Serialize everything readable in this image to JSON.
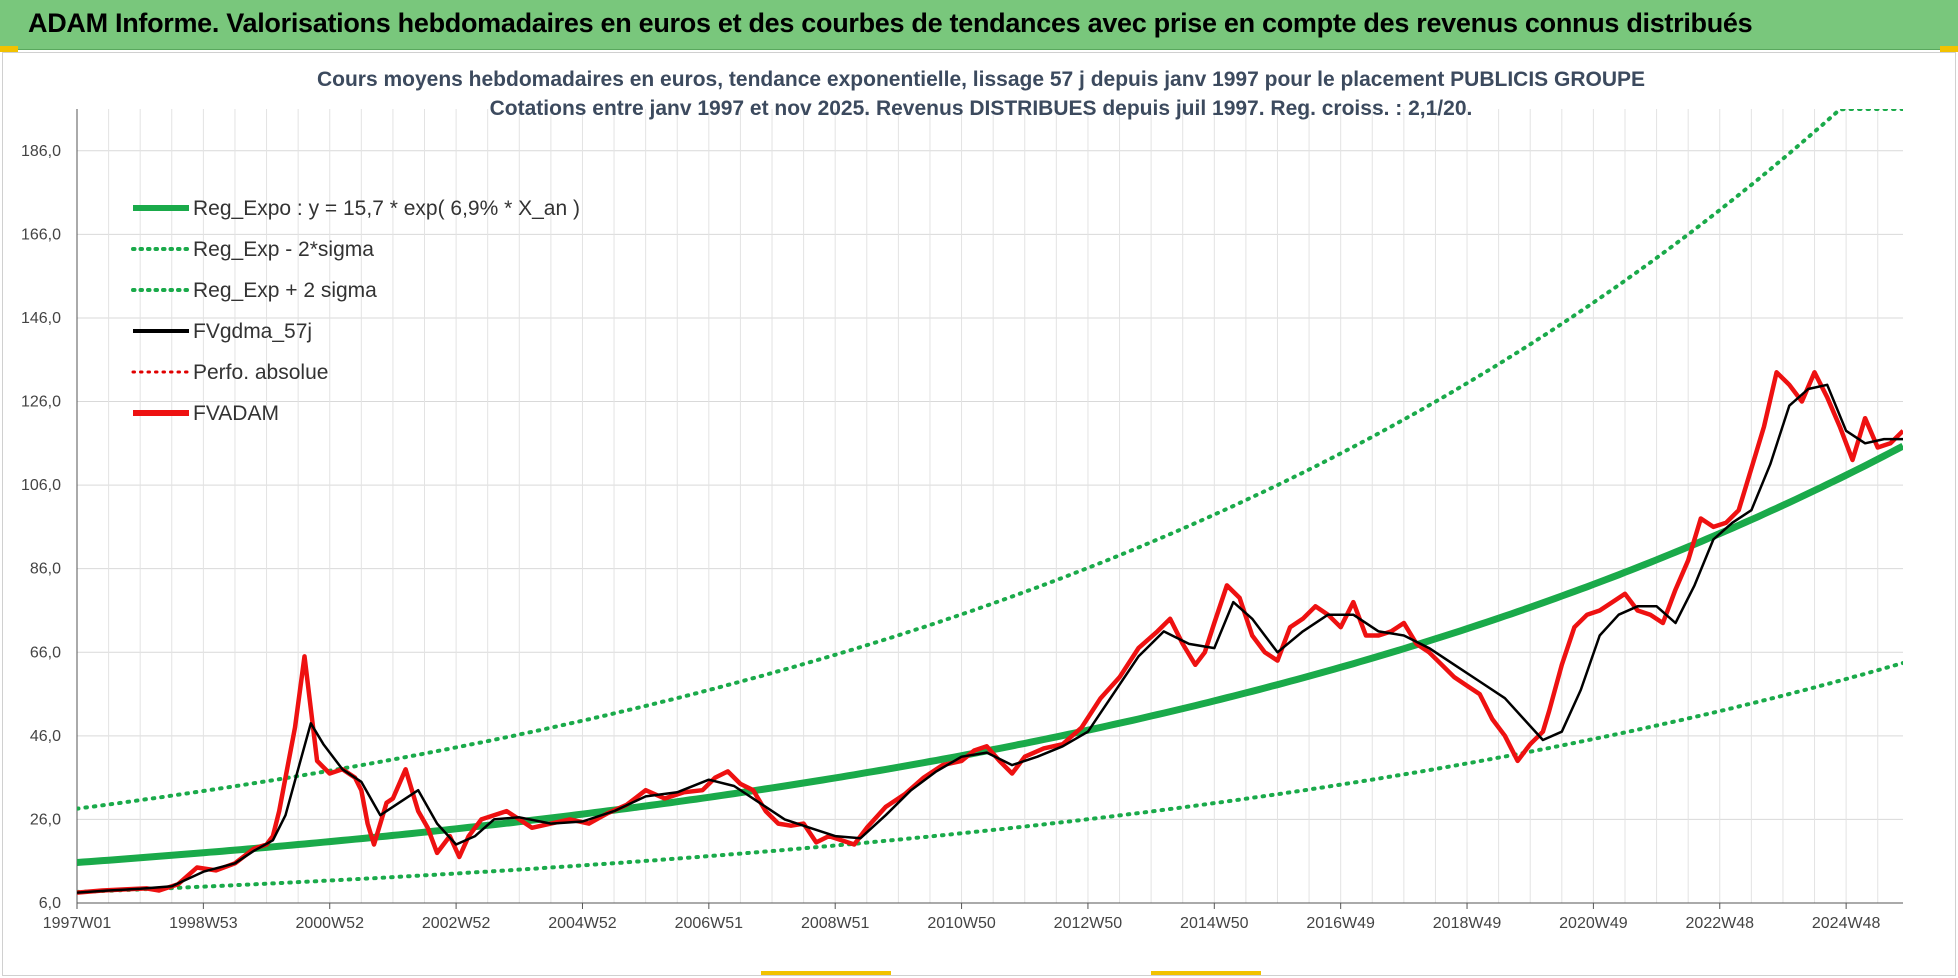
{
  "banner": {
    "text": "ADAM Informe. Valorisations hebdomadaires en euros et des courbes de tendances avec prise en compte des revenus connus distribués"
  },
  "chart_data": {
    "type": "line",
    "title": "Cours moyens hebdomadaires en euros, tendance exponentielle, lissage 57 j depuis janv 1997 pour le placement PUBLICIS GROUPE",
    "subtitle": "Cotations entre janv 1997 et nov 2025. Revenus DISTRIBUES depuis juil 1997. Reg. croiss. : 2,1/20.",
    "xlabel": "",
    "ylabel": "",
    "x_range": [
      1997.0,
      2025.9
    ],
    "ylim": [
      6.0,
      196.0
    ],
    "y_ticks": [
      "6,0",
      "26,0",
      "46,0",
      "66,0",
      "86,0",
      "106,0",
      "126,0",
      "146,0",
      "166,0",
      "186,0"
    ],
    "y_tick_values": [
      6,
      26,
      46,
      66,
      86,
      106,
      126,
      146,
      166,
      186
    ],
    "x_ticks": [
      "1997W01",
      "1998W53",
      "2000W52",
      "2002W52",
      "2004W52",
      "2006W51",
      "2008W51",
      "2010W50",
      "2012W50",
      "2014W50",
      "2016W49",
      "2018W49",
      "2020W49",
      "2022W48",
      "2024W48"
    ],
    "x_tick_values": [
      1997.0,
      1999.0,
      2001.0,
      2003.0,
      2005.0,
      2007.0,
      2009.0,
      2011.0,
      2013.0,
      2015.0,
      2017.0,
      2019.0,
      2021.0,
      2023.0,
      2025.0
    ],
    "grid": true,
    "legend_position": "top-left",
    "legend": [
      {
        "label": "Reg_Expo : y = 15,7 * exp( 6,9% *  X_an )",
        "color": "#1aaa4a",
        "style": "solid-thick"
      },
      {
        "label": "Reg_Exp - 2*sigma",
        "color": "#1aaa4a",
        "style": "dotted"
      },
      {
        "label": "Reg_Exp + 2 sigma",
        "color": "#1aaa4a",
        "style": "dotted"
      },
      {
        "label": "FVgdma_57j",
        "color": "#000000",
        "style": "solid"
      },
      {
        "label": "Perfo. absolue",
        "color": "#e00000",
        "style": "dotted"
      },
      {
        "label": "FVADAM",
        "color": "#ee1111",
        "style": "solid-thick"
      }
    ],
    "regression": {
      "a": 15.7,
      "rate": 0.069,
      "start_year": 1997.0,
      "lower_factor": 0.55,
      "upper_factor": 1.82
    },
    "series": [
      {
        "name": "FVADAM",
        "x": [
          1997.0,
          1997.4,
          1997.8,
          1998.1,
          1998.3,
          1998.6,
          1998.9,
          1999.2,
          1999.5,
          1999.8,
          2000.0,
          2000.1,
          2000.2,
          2000.3,
          2000.45,
          2000.6,
          2000.8,
          2001.0,
          2001.2,
          2001.4,
          2001.5,
          2001.6,
          2001.7,
          2001.9,
          2002.0,
          2002.2,
          2002.4,
          2002.55,
          2002.7,
          2002.9,
          2003.05,
          2003.2,
          2003.4,
          2003.6,
          2003.8,
          2004.0,
          2004.2,
          2004.5,
          2004.8,
          2005.1,
          2005.4,
          2005.7,
          2006.0,
          2006.3,
          2006.6,
          2006.9,
          2007.1,
          2007.3,
          2007.5,
          2007.7,
          2007.9,
          2008.1,
          2008.3,
          2008.5,
          2008.7,
          2008.9,
          2009.1,
          2009.3,
          2009.5,
          2009.8,
          2010.1,
          2010.4,
          2010.7,
          2011.0,
          2011.2,
          2011.4,
          2011.6,
          2011.8,
          2012.0,
          2012.3,
          2012.6,
          2012.9,
          2013.2,
          2013.5,
          2013.8,
          2014.1,
          2014.3,
          2014.5,
          2014.7,
          2014.85,
          2015.0,
          2015.2,
          2015.4,
          2015.6,
          2015.8,
          2016.0,
          2016.2,
          2016.4,
          2016.6,
          2016.8,
          2017.0,
          2017.2,
          2017.4,
          2017.6,
          2017.8,
          2018.0,
          2018.2,
          2018.4,
          2018.6,
          2018.8,
          2019.0,
          2019.2,
          2019.4,
          2019.6,
          2019.8,
          2020.0,
          2020.2,
          2020.3,
          2020.5,
          2020.7,
          2020.9,
          2021.1,
          2021.3,
          2021.5,
          2021.7,
          2021.9,
          2022.1,
          2022.3,
          2022.5,
          2022.7,
          2022.9,
          2023.1,
          2023.3,
          2023.5,
          2023.7,
          2023.9,
          2024.1,
          2024.3,
          2024.5,
          2024.7,
          2024.9,
          2025.1,
          2025.3,
          2025.5,
          2025.7,
          2025.9
        ],
        "values": [
          8.5,
          9.0,
          9.3,
          9.5,
          9.0,
          10.5,
          14.5,
          13.8,
          15.5,
          19.0,
          20.0,
          22.0,
          28.0,
          36.0,
          48.0,
          65.0,
          40.0,
          37.0,
          38.0,
          36.0,
          33.0,
          25.0,
          20.0,
          30.0,
          31.0,
          38.0,
          28.0,
          24.0,
          18.0,
          22.0,
          17.0,
          22.0,
          26.0,
          27.0,
          28.0,
          26.0,
          24.0,
          25.0,
          26.0,
          25.0,
          27.5,
          29.5,
          33.0,
          31.0,
          32.5,
          33.0,
          36.0,
          37.5,
          34.5,
          33.0,
          28.0,
          25.0,
          24.5,
          25.0,
          20.5,
          22.0,
          21.0,
          20.0,
          24.0,
          29.0,
          32.0,
          36.0,
          39.0,
          40.0,
          42.5,
          43.5,
          40.0,
          37.0,
          41.0,
          43.0,
          44.0,
          48.0,
          55.0,
          60.0,
          67.0,
          71.0,
          74.0,
          68.0,
          63.0,
          66.0,
          73.0,
          82.0,
          79.0,
          70.0,
          66.0,
          64.0,
          72.0,
          74.0,
          77.0,
          75.0,
          72.0,
          78.0,
          70.0,
          70.0,
          71.0,
          73.0,
          68.0,
          66.0,
          63.0,
          60.0,
          58.0,
          56.0,
          50.0,
          46.0,
          40.0,
          44.0,
          47.0,
          52.0,
          63.0,
          72.0,
          75.0,
          76.0,
          78.0,
          80.0,
          76.0,
          75.0,
          73.0,
          81.0,
          88.0,
          98.0,
          96.0,
          97.0,
          100.0,
          110.0,
          120.0,
          133.0,
          130.0,
          126.0,
          133.0,
          127.0,
          120.0,
          112.0,
          122.0,
          115.0,
          116.0,
          119.0
        ]
      },
      {
        "name": "FVgdma_57j",
        "x": [
          1997.0,
          1997.5,
          1998.0,
          1998.5,
          1999.0,
          1999.5,
          1999.8,
          2000.1,
          2000.3,
          2000.5,
          2000.7,
          2000.9,
          2001.2,
          2001.5,
          2001.8,
          2002.1,
          2002.4,
          2002.7,
          2003.0,
          2003.3,
          2003.6,
          2004.0,
          2004.5,
          2005.0,
          2005.5,
          2006.0,
          2006.5,
          2007.0,
          2007.4,
          2007.8,
          2008.2,
          2008.6,
          2009.0,
          2009.4,
          2009.8,
          2010.2,
          2010.6,
          2011.0,
          2011.4,
          2011.8,
          2012.2,
          2012.6,
          2013.0,
          2013.4,
          2013.8,
          2014.2,
          2014.6,
          2015.0,
          2015.3,
          2015.6,
          2016.0,
          2016.4,
          2016.8,
          2017.2,
          2017.6,
          2018.0,
          2018.4,
          2018.8,
          2019.2,
          2019.6,
          2019.9,
          2020.2,
          2020.5,
          2020.8,
          2021.1,
          2021.4,
          2021.7,
          2022.0,
          2022.3,
          2022.6,
          2022.9,
          2023.2,
          2023.5,
          2023.8,
          2024.1,
          2024.4,
          2024.7,
          2025.0,
          2025.3,
          2025.6,
          2025.9
        ],
        "values": [
          8.5,
          9.0,
          9.4,
          10.0,
          13.5,
          15.5,
          18.5,
          21.0,
          27.0,
          38.0,
          49.0,
          44.0,
          38.0,
          35.0,
          27.0,
          30.0,
          33.0,
          25.0,
          20.0,
          22.0,
          26.0,
          26.5,
          25.0,
          25.5,
          28.0,
          31.5,
          32.5,
          35.5,
          34.0,
          30.0,
          26.0,
          24.0,
          22.0,
          21.5,
          27.0,
          33.0,
          37.5,
          41.0,
          42.0,
          39.0,
          41.0,
          43.5,
          47.0,
          56.0,
          65.0,
          71.0,
          68.0,
          67.0,
          78.0,
          74.0,
          66.0,
          71.0,
          75.0,
          75.0,
          71.0,
          70.0,
          67.0,
          63.0,
          59.0,
          55.0,
          50.0,
          45.0,
          47.0,
          57.0,
          70.0,
          75.0,
          77.0,
          77.0,
          73.0,
          82.0,
          93.0,
          97.0,
          100.0,
          111.0,
          125.0,
          129.0,
          130.0,
          119.0,
          116.0,
          117.0,
          117.0
        ]
      }
    ]
  }
}
